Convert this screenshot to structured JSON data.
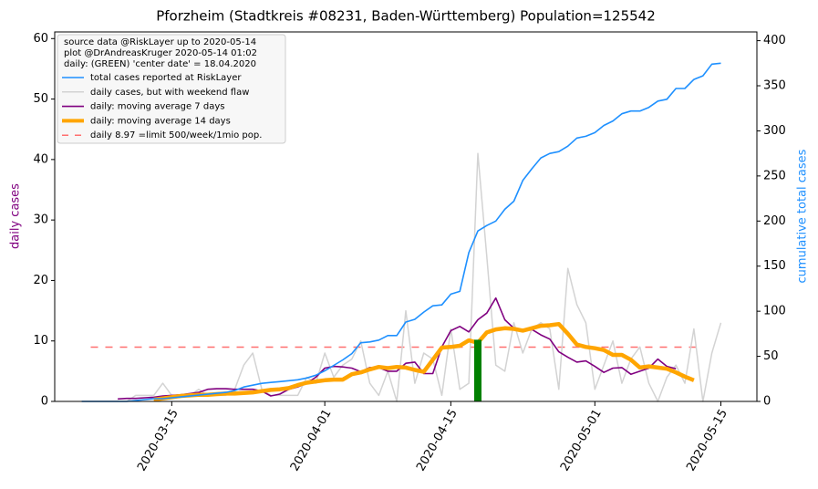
{
  "chart_data": {
    "type": "line",
    "title": "Pforzheim (Stadtkreis #08231, Baden-Württemberg) Population=125542",
    "legend_header": [
      "source data @RiskLayer up to 2020-05-14",
      "plot @DrAndreasKruger 2020-05-14 01:02",
      "daily: (GREEN) 'center date' = 18.04.2020"
    ],
    "legend": "upper left",
    "ylabel": "daily cases",
    "ylabel_color": "purple",
    "y2label": "cumulative total cases",
    "y2label_color": "#1e90ff",
    "xlim": [
      "2020-03-02",
      "2020-05-19"
    ],
    "xticks": [
      "2020-03-15",
      "2020-04-01",
      "2020-04-15",
      "2020-05-01",
      "2020-05-15"
    ],
    "ylim": [
      0,
      61.1
    ],
    "yticks": [
      0,
      10,
      20,
      30,
      40,
      50,
      60
    ],
    "y2lim": [
      0,
      409.7
    ],
    "y2ticks": [
      0,
      50,
      100,
      150,
      200,
      250,
      300,
      350,
      400
    ],
    "x": [
      "2020-03-05",
      "2020-03-06",
      "2020-03-07",
      "2020-03-08",
      "2020-03-09",
      "2020-03-10",
      "2020-03-11",
      "2020-03-12",
      "2020-03-13",
      "2020-03-14",
      "2020-03-15",
      "2020-03-16",
      "2020-03-17",
      "2020-03-18",
      "2020-03-19",
      "2020-03-20",
      "2020-03-21",
      "2020-03-22",
      "2020-03-23",
      "2020-03-24",
      "2020-03-25",
      "2020-03-26",
      "2020-03-27",
      "2020-03-28",
      "2020-03-29",
      "2020-03-30",
      "2020-03-31",
      "2020-04-01",
      "2020-04-02",
      "2020-04-03",
      "2020-04-04",
      "2020-04-05",
      "2020-04-06",
      "2020-04-07",
      "2020-04-08",
      "2020-04-09",
      "2020-04-10",
      "2020-04-11",
      "2020-04-12",
      "2020-04-13",
      "2020-04-14",
      "2020-04-15",
      "2020-04-16",
      "2020-04-17",
      "2020-04-18",
      "2020-04-19",
      "2020-04-20",
      "2020-04-21",
      "2020-04-22",
      "2020-04-23",
      "2020-04-24",
      "2020-04-25",
      "2020-04-26",
      "2020-04-27",
      "2020-04-28",
      "2020-04-29",
      "2020-04-30",
      "2020-05-01",
      "2020-05-02",
      "2020-05-03",
      "2020-05-04",
      "2020-05-05",
      "2020-05-06",
      "2020-05-07",
      "2020-05-08",
      "2020-05-09",
      "2020-05-10",
      "2020-05-11",
      "2020-05-12",
      "2020-05-13",
      "2020-05-14",
      "2020-05-15"
    ],
    "series": [
      {
        "name": "total cases reported at RiskLayer",
        "color": "#1e90ff",
        "linewidth": 1.6,
        "axis": "y2",
        "values": [
          0,
          0,
          0,
          0,
          0,
          0,
          1,
          2,
          3,
          3,
          4,
          5,
          6,
          7,
          8,
          9,
          10,
          12,
          16,
          18,
          20,
          21,
          22,
          23,
          24,
          26,
          29,
          34,
          40,
          46,
          53,
          65,
          66,
          68,
          73,
          73,
          88,
          91,
          99,
          106,
          107,
          119,
          122,
          165,
          189,
          195,
          200,
          213,
          222,
          245,
          258,
          270,
          275,
          277,
          283,
          292,
          294,
          298,
          306,
          311,
          319,
          322,
          322,
          326,
          333,
          335,
          347,
          347,
          357,
          361,
          374,
          375
        ]
      },
      {
        "name": "daily cases, but with weekend flaw",
        "color": "#d3d3d3",
        "linewidth": 1.5,
        "values": [
          0,
          0,
          0,
          0,
          0,
          0,
          1,
          1,
          1,
          3,
          1,
          1,
          1,
          2,
          1,
          1,
          1,
          2,
          6,
          8,
          2,
          1,
          1,
          1,
          1,
          4,
          3,
          8,
          4,
          6,
          7,
          10,
          3,
          1,
          5,
          0,
          15,
          3,
          8,
          7,
          1,
          12,
          2,
          3,
          41,
          24,
          6,
          5,
          13,
          8,
          12,
          13,
          12,
          2,
          22,
          16,
          13,
          2,
          6,
          10,
          3,
          7,
          9,
          3,
          0,
          4,
          6,
          3,
          12,
          0,
          8,
          13
        ]
      },
      {
        "name": "daily: moving average 7 days",
        "color": "purple",
        "linewidth": 1.6,
        "values": [
          null,
          null,
          null,
          null,
          0.4,
          0.5,
          0.5,
          0.6,
          0.7,
          0.9,
          1.0,
          1.1,
          1.3,
          1.5,
          2.0,
          2.1,
          2.1,
          2.0,
          2.0,
          2.0,
          1.7,
          0.9,
          1.2,
          2.0,
          2.4,
          3.0,
          4.0,
          5.5,
          5.8,
          5.7,
          5.5,
          4.9,
          5.6,
          5.6,
          5.0,
          5.0,
          6.3,
          6.5,
          4.6,
          4.6,
          9.0,
          11.7,
          12.4,
          11.5,
          13.5,
          14.6,
          17.1,
          13.5,
          12.1,
          11.6,
          11.9,
          11.0,
          10.3,
          8.2,
          7.3,
          6.5,
          6.7,
          5.8,
          4.8,
          5.5,
          5.6,
          4.5,
          5.0,
          5.5,
          7.0,
          5.8,
          5.4,
          null,
          null,
          null,
          null,
          null
        ]
      },
      {
        "name": "daily: moving average 14 days",
        "color": "#ffa500",
        "linewidth": 4.5,
        "values": [
          null,
          null,
          null,
          null,
          null,
          null,
          null,
          null,
          0.3,
          0.5,
          0.7,
          0.9,
          1.0,
          1.1,
          1.1,
          1.2,
          1.3,
          1.3,
          1.4,
          1.5,
          1.7,
          1.9,
          2.0,
          2.2,
          2.7,
          3.1,
          3.3,
          3.5,
          3.6,
          3.6,
          4.5,
          4.8,
          5.3,
          5.7,
          5.5,
          5.7,
          5.6,
          5.2,
          4.9,
          6.9,
          8.9,
          9.0,
          9.2,
          10.1,
          9.7,
          11.4,
          11.9,
          12.1,
          12.0,
          11.7,
          12.1,
          12.5,
          12.6,
          12.8,
          11.2,
          9.4,
          9.0,
          8.8,
          8.5,
          7.7,
          7.7,
          6.9,
          5.6,
          5.8,
          5.6,
          5.4,
          4.8,
          4.1,
          3.5,
          null,
          null,
          null
        ]
      }
    ],
    "limit": {
      "name": "daily 8.97 =limit 500/week/1mio pop.",
      "color": "#ff6f6f",
      "value": 8.97,
      "x": [
        "2020-03-06",
        "2020-05-13"
      ]
    },
    "center_bar": {
      "x": "2020-04-18",
      "value": 10.2,
      "color": "green"
    }
  }
}
